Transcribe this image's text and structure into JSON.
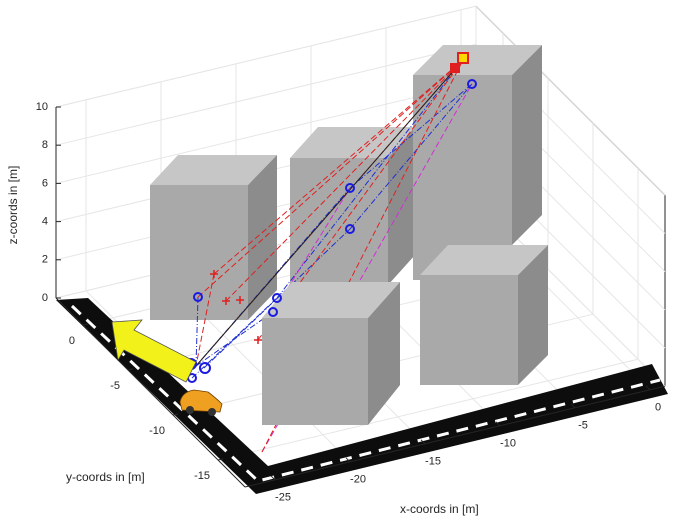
{
  "chart_data": {
    "type": "scatter3d",
    "xlabel": "x-coords in [m]",
    "ylabel": "y-coords in [m]",
    "zlabel": "z-coords in [m]",
    "xlim": [
      -27,
      1
    ],
    "ylim": [
      -18,
      3
    ],
    "zlim": [
      0,
      10
    ],
    "xticks": [
      -25,
      -20,
      -15,
      -10,
      -5,
      0
    ],
    "yticks": [
      -15,
      -10,
      -5,
      0
    ],
    "zticks": [
      0,
      2,
      4,
      6,
      8,
      10
    ],
    "grid": true
  }
}
